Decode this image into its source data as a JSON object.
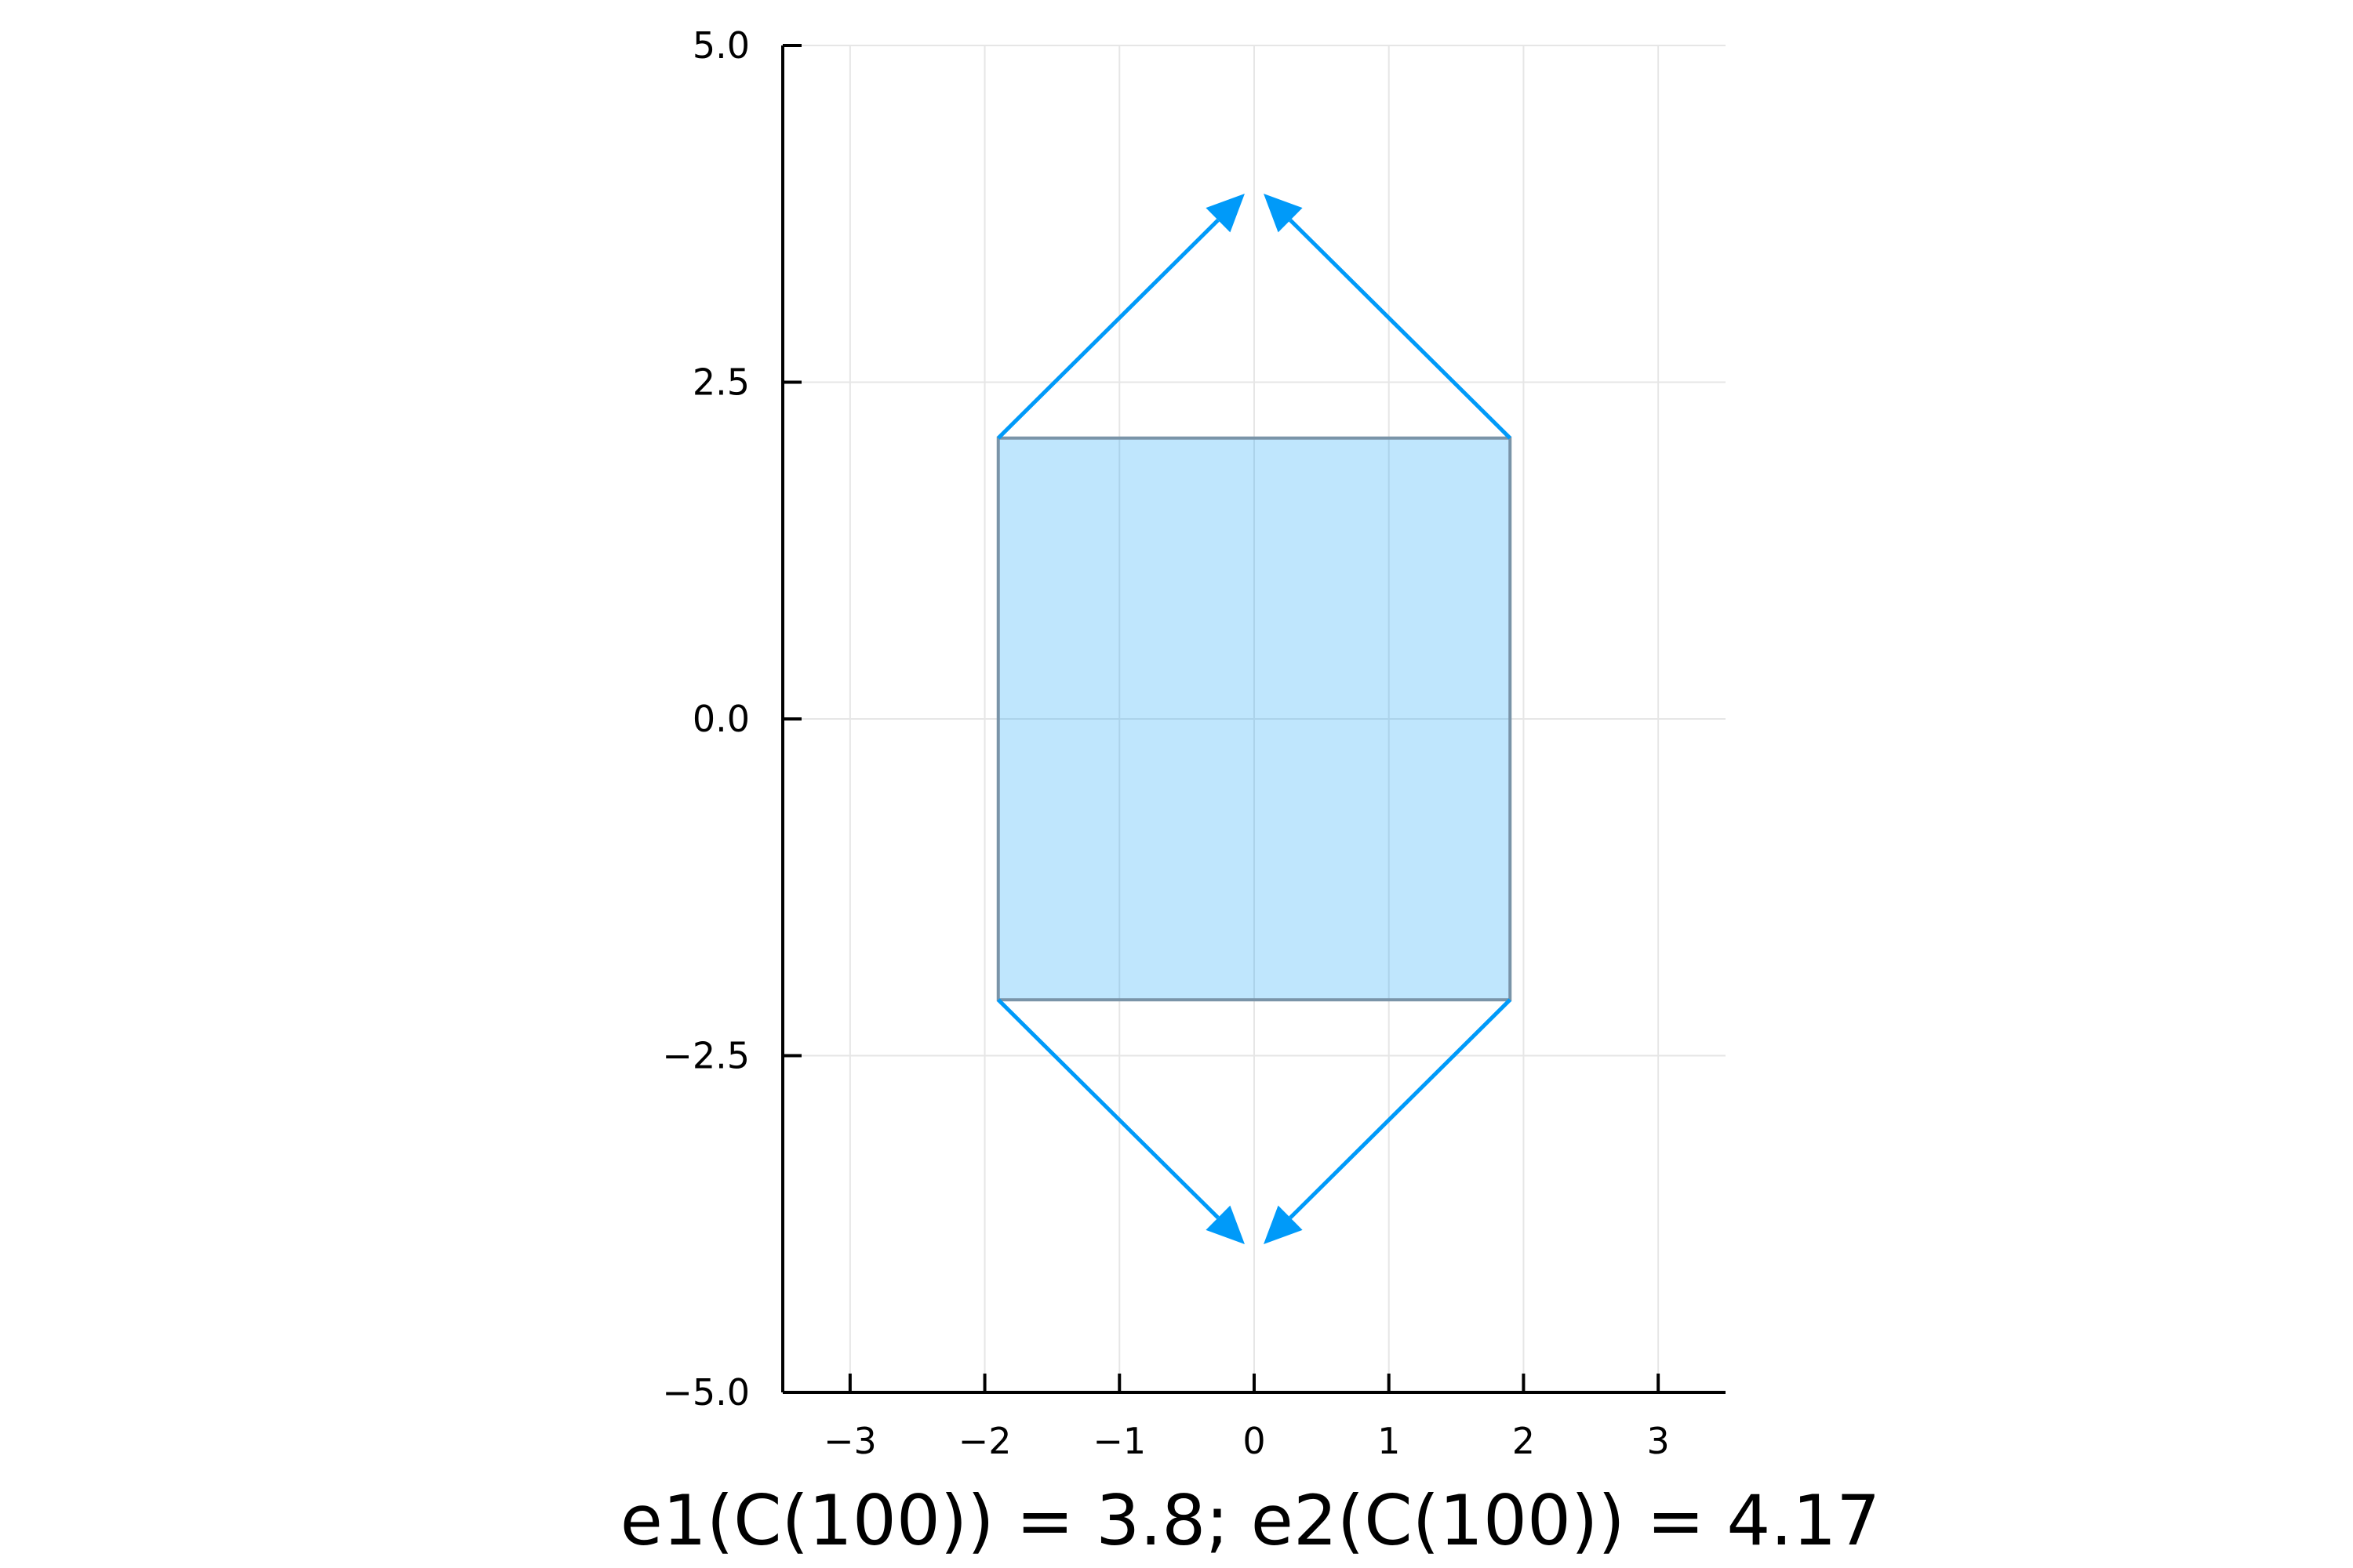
{
  "chart_data": {
    "type": "scatter",
    "title": "",
    "xlabel": "",
    "ylabel": "",
    "caption": "e1(C(100)) = 3.8; e2(C(100)) = 4.17",
    "xlim": [
      -3.5,
      3.5
    ],
    "ylim": [
      -5,
      5
    ],
    "x_ticks": [
      -3,
      -2,
      -1,
      0,
      1,
      2,
      3
    ],
    "x_tick_labels": [
      "−3",
      "−2",
      "−1",
      "0",
      "1",
      "2",
      "3"
    ],
    "y_ticks": [
      -5,
      -2.5,
      0,
      2.5,
      5
    ],
    "y_tick_labels": [
      "−5.0",
      "−2.5",
      "0.0",
      "2.5",
      "5.0"
    ],
    "grid": true,
    "aspect": "equal",
    "rectangle": {
      "corners": [
        [
          -1.9,
          -2.085
        ],
        [
          1.9,
          -2.085
        ],
        [
          1.9,
          2.085
        ],
        [
          -1.9,
          2.085
        ]
      ],
      "fill_color": "#009af9",
      "fill_opacity": 0.25,
      "edge_color": "#7a94a8"
    },
    "arrows": [
      {
        "from": [
          -1.9,
          2.085
        ],
        "to": [
          -0.07,
          3.9
        ]
      },
      {
        "from": [
          1.9,
          2.085
        ],
        "to": [
          0.07,
          3.9
        ]
      },
      {
        "from": [
          -1.9,
          -2.085
        ],
        "to": [
          -0.07,
          -3.9
        ]
      },
      {
        "from": [
          1.9,
          -2.085
        ],
        "to": [
          0.07,
          -3.9
        ]
      }
    ],
    "arrow_color": "#009af9",
    "axis_color": "#000000",
    "grid_color": "#e6e6e6"
  }
}
